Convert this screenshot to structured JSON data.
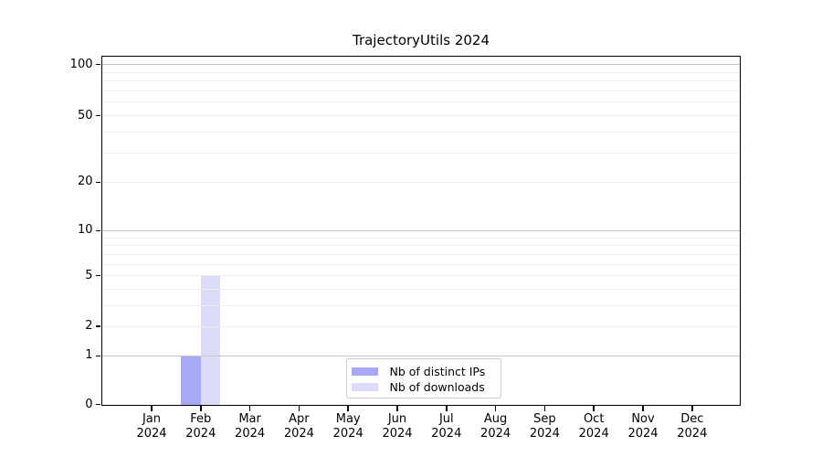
{
  "chart_data": {
    "type": "bar",
    "title": "TrajectoryUtils 2024",
    "year": "2024",
    "months": [
      "Jan",
      "Feb",
      "Mar",
      "Apr",
      "May",
      "Jun",
      "Jul",
      "Aug",
      "Sep",
      "Oct",
      "Nov",
      "Dec"
    ],
    "series": [
      {
        "name": "Nb of distinct IPs",
        "color": "#a8a8f6",
        "values": [
          0,
          1,
          0,
          0,
          0,
          0,
          0,
          0,
          0,
          0,
          0,
          0
        ]
      },
      {
        "name": "Nb of downloads",
        "color": "#dcdcf9",
        "values": [
          0,
          5,
          0,
          0,
          0,
          0,
          0,
          0,
          0,
          0,
          0,
          0
        ]
      }
    ],
    "y_axis": {
      "scale": "log-like (position proportional to log10(value+1.1))",
      "labeled_ticks": [
        0,
        1,
        2,
        5,
        10,
        20,
        50,
        100
      ],
      "major_gridlines": [
        1,
        10,
        100
      ],
      "minor_gridlines": [
        2,
        3,
        4,
        5,
        6,
        7,
        8,
        9,
        20,
        30,
        40,
        50,
        60,
        70,
        80,
        90
      ],
      "range": [
        0,
        100
      ]
    },
    "x_axis": {
      "tick_labels": [
        "Jan\n2024",
        "Feb\n2024",
        "Mar\n2024",
        "Apr\n2024",
        "May\n2024",
        "Jun\n2024",
        "Jul\n2024",
        "Aug\n2024",
        "Sep\n2024",
        "Oct\n2024",
        "Nov\n2024",
        "Dec\n2024"
      ]
    },
    "legend": {
      "position": "bottom-center",
      "entries": [
        "Nb of distinct IPs",
        "Nb of downloads"
      ]
    },
    "grid": true,
    "colors": {
      "major_grid": "#c6c6c6",
      "minor_grid": "#ededed",
      "spine": "#000000",
      "text": "#000000",
      "legend_border": "#cccccc",
      "background": "#ffffff"
    }
  }
}
